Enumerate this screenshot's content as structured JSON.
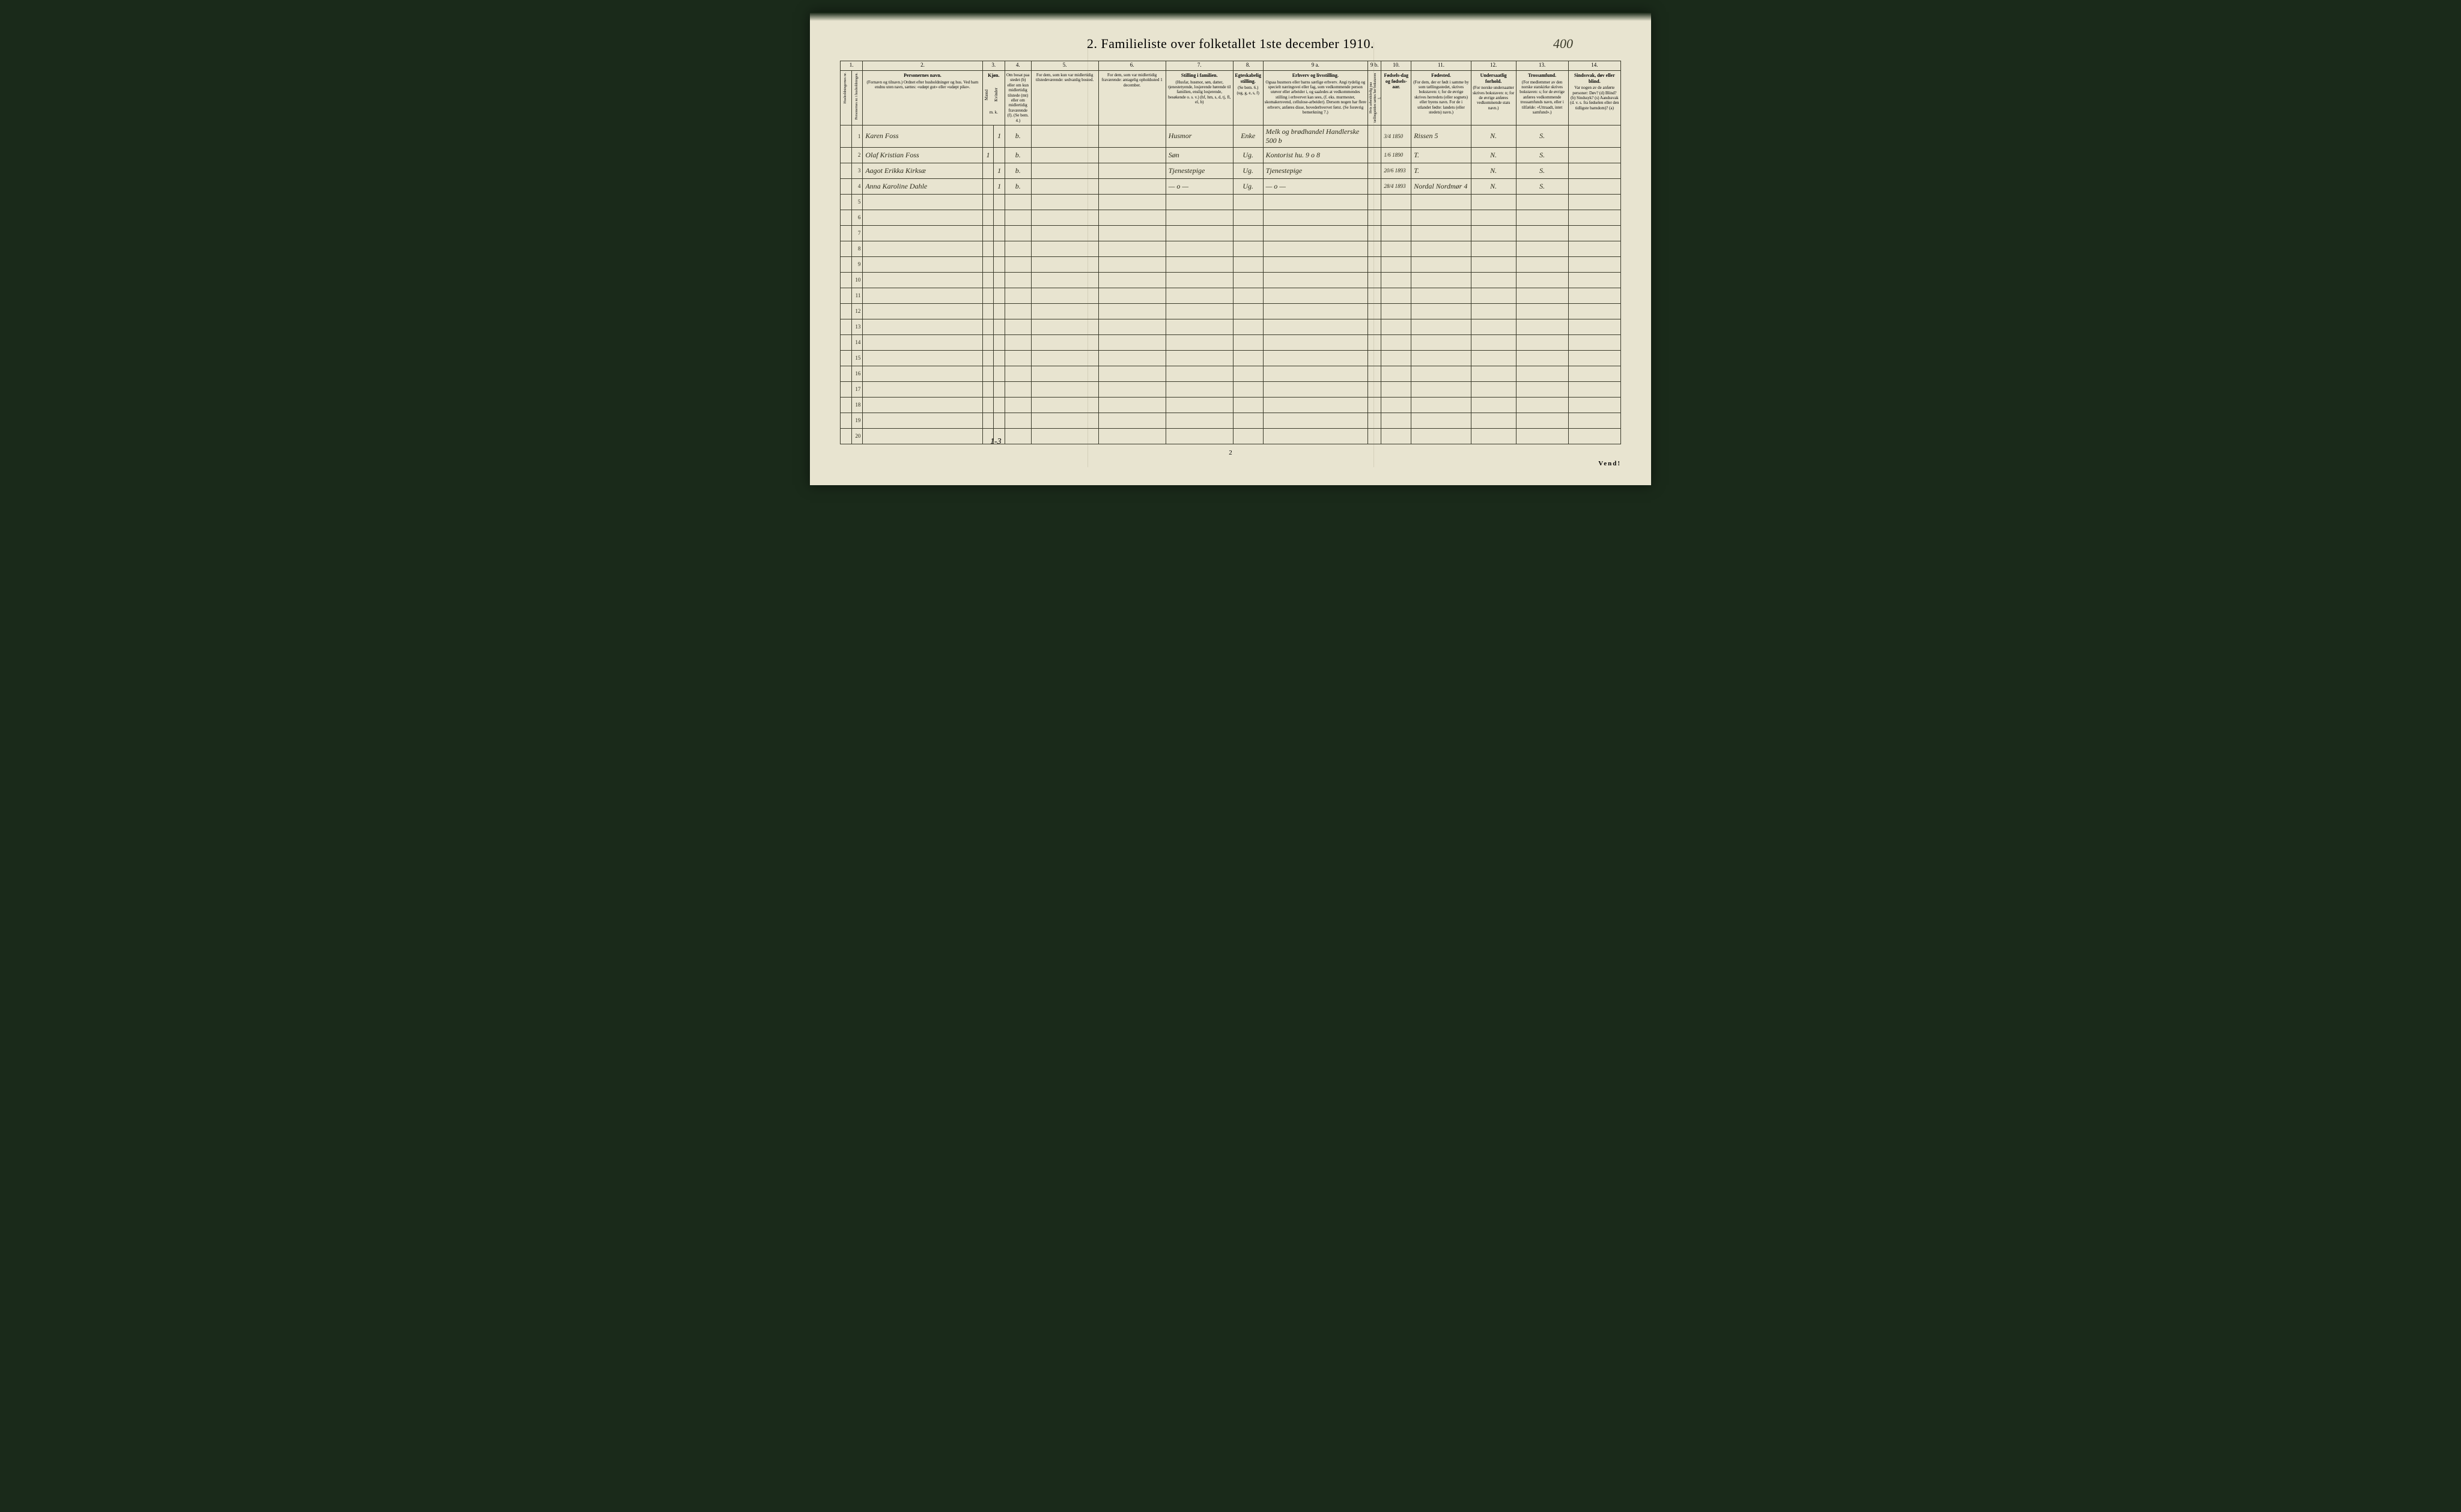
{
  "title": "2.  Familieliste over folketallet 1ste december 1910.",
  "handwritten_top_right": "400",
  "page_number": "2",
  "footer_handwritten": "1-3",
  "vend": "Vend!",
  "colors": {
    "paper": "#e8e4d0",
    "ink": "#2a2a1a",
    "border": "#3a3a2a",
    "background": "#1a2a1a"
  },
  "columns": {
    "nums": [
      "1.",
      "2.",
      "3.",
      "4.",
      "5.",
      "6.",
      "7.",
      "8.",
      "9 a.",
      "9 b.",
      "10.",
      "11.",
      "12.",
      "13.",
      "14."
    ],
    "h_hush": "Husholdningernes nr.",
    "h_pers": "Personernes nr. i husholdningen.",
    "h2_label": "Personernes navn.",
    "h2": "(Fornavn og tilnavn.)\nOrdnet efter husholdninger og hus.\nVed barn endnu uten navn, sættes: «udøpt gut» eller «udøpt pike».",
    "h3_label": "Kjøn.",
    "h3m": "Mænd",
    "h3k": "Kvinder",
    "h3_sub": "m.  k.",
    "h4": "Om bosat paa stedet (b) eller om kun midlertidig tilstede (mt) eller om midlertidig fraværende (f). (Se bem. 4.)",
    "h5": "For dem, som kun var midlertidig tilstedeværende: sedvanlig bosted.",
    "h6": "For dem, som var midlertidig fraværende: antagelig opholdssted 1 december.",
    "h7_label": "Stilling i familien.",
    "h7": "(Husfar, husmor, søn, datter, tjenestetyende, losjerende hørende til familien, enslig losjerende, besøkende o. s. v.)\n(hf, hm, s, d, tj, fl, el, b)",
    "h8_label": "Egteskabelig stilling.",
    "h8": "(Se bem. 6.)\n(ug, g, e, s, f)",
    "h9a_label": "Erhverv og livsstilling.",
    "h9a": "Ogsaa husmors eller barns særlige erhverv. Angi tydelig og specielt næringsvei eller fag, som vedkommende person utøver eller arbeider i, og saaledes at vedkommendes stilling i erhvervet kan sees, (f. eks. murmester, skomakersvend, cellulose-arbeider). Dersom nogen har flere erhverv, anføres disse, hovederhvervet først. (Se forøvrig bemerkning 7.)",
    "h9b": "Hvis arbeidsledig paa tællingstiden sættes her bokstaven l.",
    "h10_label": "Fødsels-dag og fødsels-aar.",
    "h11_label": "Fødested.",
    "h11": "(For dem, der er født i samme by som tællingsstedet, skrives bokstaven: t; for de øvrige skrives herredets (eller sognets) eller byens navn. For de i utlandet fødte: landets (eller stedets) navn.)",
    "h12_label": "Undersaatlig forhold.",
    "h12": "(For norske undersaatter skrives bokstaven: n; for de øvrige anføres vedkommende stats navn.)",
    "h13_label": "Trossamfund.",
    "h13": "(For medlemmer av den norske statskirke skrives bokstaven: s; for de øvrige anføres vedkommende trossamfunds navn, eller i tilfælde: «Uttraadt, intet samfund».)",
    "h14_label": "Sindssvak, døv eller blind.",
    "h14": "Var nogen av de anførte personer:\nDøv? (d)\nBlind? (b)\nSindssyk? (s)\nAandssvak (d. v. s. fra fødselen eller den tidligste barndom)? (a)"
  },
  "rows": [
    {
      "n": "1",
      "name": "Karen Foss",
      "m": "",
      "k": "1",
      "b": "b.",
      "c5": "",
      "c6": "",
      "c7": "Husmor",
      "c8": "Enke",
      "c9a": "Melk og brødhandel Handlerske 500 b",
      "c9b": "",
      "c10": "3/4 1850",
      "c11": "Rissen 5",
      "c12": "N.",
      "c13": "S.",
      "c14": ""
    },
    {
      "n": "2",
      "name": "Olaf Kristian Foss",
      "m": "1",
      "k": "",
      "b": "b.",
      "c5": "",
      "c6": "",
      "c7": "Søn",
      "c8": "Ug.",
      "c9a": "Kontorist  hu.  9 o 8",
      "c9b": "",
      "c10": "1/6 1890",
      "c11": "T.",
      "c12": "N.",
      "c13": "S.",
      "c14": ""
    },
    {
      "n": "3",
      "name": "Aagot Erikka Kirksæ",
      "m": "",
      "k": "1",
      "b": "b.",
      "c5": "",
      "c6": "",
      "c7": "Tjenestepige",
      "c8": "Ug.",
      "c9a": "Tjenestepige",
      "c9b": "",
      "c10": "20/6 1893",
      "c11": "T.",
      "c12": "N.",
      "c13": "S.",
      "c14": ""
    },
    {
      "n": "4",
      "name": "Anna Karoline Dahle",
      "m": "",
      "k": "1",
      "b": "b.",
      "c5": "",
      "c6": "",
      "c7": "— o —",
      "c8": "Ug.",
      "c9a": "— o —",
      "c9b": "",
      "c10": "28/4 1893",
      "c11": "Nordal Nordmør 4",
      "c12": "N.",
      "c13": "S.",
      "c14": ""
    }
  ],
  "empty_rows": [
    "5",
    "6",
    "7",
    "8",
    "9",
    "10",
    "11",
    "12",
    "13",
    "14",
    "15",
    "16",
    "17",
    "18",
    "19",
    "20"
  ]
}
